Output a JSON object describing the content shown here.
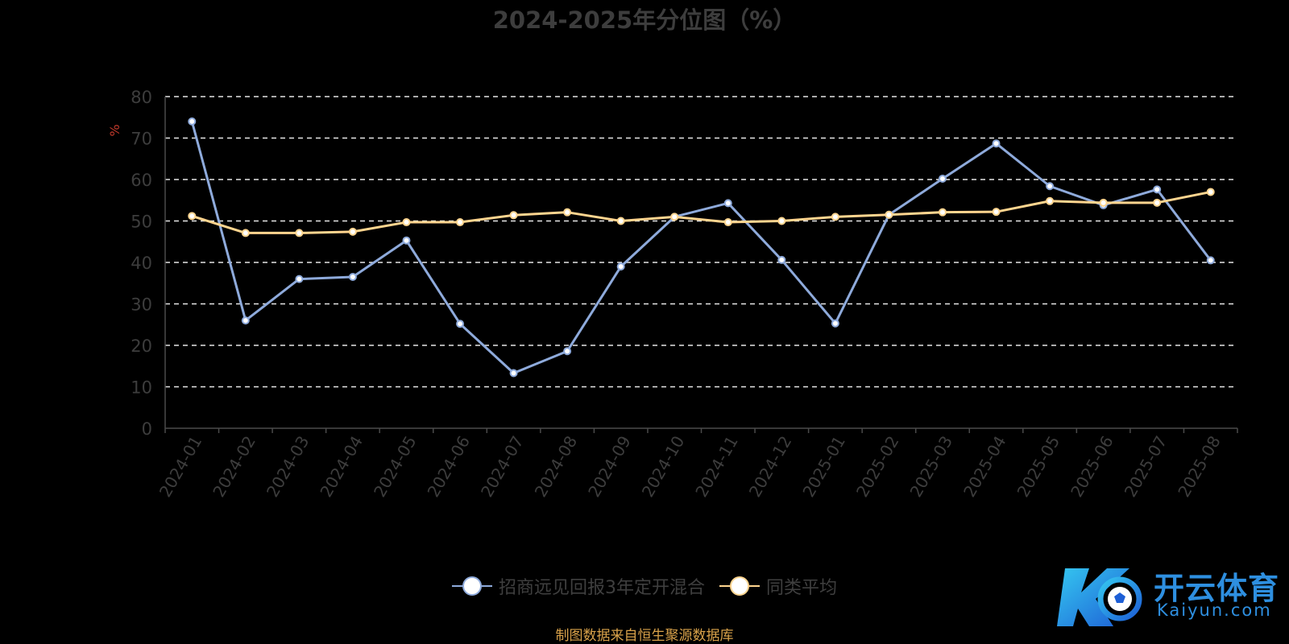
{
  "chart_data": {
    "type": "line",
    "title": "2024-2025年分位图（%）",
    "ylabel": "%",
    "ylim": [
      0,
      80
    ],
    "yticks": [
      0,
      10,
      20,
      30,
      40,
      50,
      60,
      70,
      80
    ],
    "grid": true,
    "legend_position": "bottom",
    "categories": [
      "2024-01",
      "2024-02",
      "2024-03",
      "2024-04",
      "2024-05",
      "2024-06",
      "2024-07",
      "2024-08",
      "2024-09",
      "2024-10",
      "2024-11",
      "2024-12",
      "2025-01",
      "2025-02",
      "2025-03",
      "2025-04",
      "2025-05",
      "2025-06",
      "2025-07",
      "2025-08"
    ],
    "series": [
      {
        "name": "招商远见回报3年定开混合",
        "color": "#8eaadb",
        "values": [
          74,
          26,
          36,
          36.5,
          45.3,
          25.2,
          13.3,
          18.6,
          39,
          51,
          54.3,
          40.6,
          25.3,
          51.5,
          60.2,
          68.7,
          58.4,
          53.8,
          57.6,
          40.5
        ]
      },
      {
        "name": "同类平均",
        "color": "#ffd58f",
        "values": [
          51.2,
          47.1,
          47.1,
          47.4,
          49.7,
          49.7,
          51.4,
          52.1,
          50,
          51,
          49.7,
          50,
          51,
          51.5,
          52.1,
          52.2,
          54.8,
          54.4,
          54.4,
          57
        ]
      }
    ]
  },
  "source_text": "制图数据来自恒生聚源数据库",
  "logo": {
    "cn": "开云体育",
    "en": "Kaiyun.com"
  }
}
